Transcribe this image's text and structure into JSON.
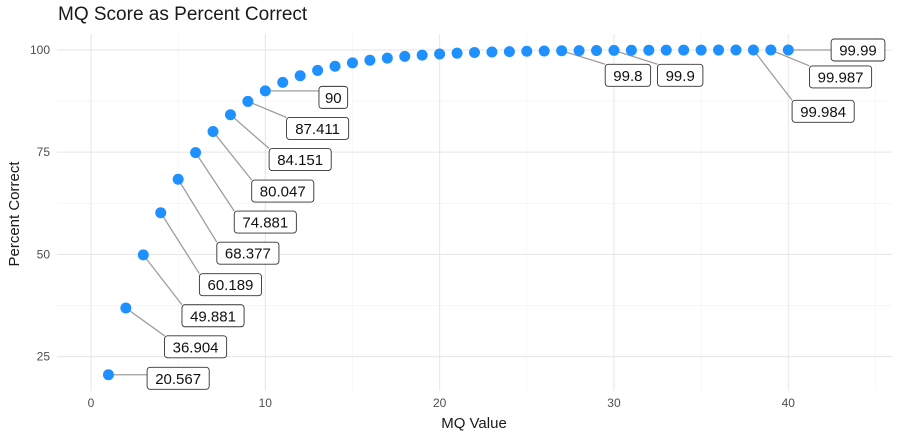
{
  "chart_data": {
    "type": "scatter",
    "title": "MQ Score as Percent Correct",
    "xlabel": "MQ Value",
    "ylabel": "Percent Correct",
    "xlim": [
      -1.95,
      45.95
    ],
    "ylim": [
      16.6,
      103.9
    ],
    "x_ticks": [
      0,
      10,
      20,
      30,
      40
    ],
    "y_ticks": [
      25,
      50,
      75,
      100
    ],
    "grid": true,
    "legend": "none",
    "point_color": "#1e90ff",
    "series": [
      {
        "x": [
          1,
          2,
          3,
          4,
          5,
          6,
          7,
          8,
          9,
          10,
          11,
          12,
          13,
          14,
          15,
          16,
          17,
          18,
          19,
          20,
          21,
          22,
          23,
          24,
          25,
          26,
          27,
          28,
          29,
          30,
          31,
          32,
          33,
          34,
          35,
          36,
          37,
          38,
          39,
          40
        ],
        "values": [
          20.567,
          36.904,
          49.881,
          60.189,
          68.377,
          74.881,
          80.047,
          84.151,
          87.411,
          90,
          92.06,
          93.69,
          94.99,
          96.02,
          96.84,
          97.49,
          98.0,
          98.42,
          98.74,
          99.0,
          99.21,
          99.37,
          99.5,
          99.6,
          99.68,
          99.75,
          99.8,
          99.84,
          99.87,
          99.9,
          99.92,
          99.94,
          99.95,
          99.96,
          99.97,
          99.975,
          99.98,
          99.984,
          99.987,
          99.99
        ]
      }
    ],
    "labeled_points": [
      {
        "x": 1,
        "y": 20.567,
        "label": "20.567",
        "lx": 5.0,
        "ly": 19.7
      },
      {
        "x": 2,
        "y": 36.904,
        "label": "36.904",
        "lx": 6.0,
        "ly": 27.4
      },
      {
        "x": 3,
        "y": 49.881,
        "label": "49.881",
        "lx": 7.0,
        "ly": 35.0
      },
      {
        "x": 4,
        "y": 60.189,
        "label": "60.189",
        "lx": 8.0,
        "ly": 42.6
      },
      {
        "x": 5,
        "y": 68.377,
        "label": "68.377",
        "lx": 9.0,
        "ly": 50.3
      },
      {
        "x": 6,
        "y": 74.881,
        "label": "74.881",
        "lx": 10.0,
        "ly": 57.9
      },
      {
        "x": 7,
        "y": 80.047,
        "label": "80.047",
        "lx": 11.0,
        "ly": 65.5
      },
      {
        "x": 8,
        "y": 84.151,
        "label": "84.151",
        "lx": 12.0,
        "ly": 73.2
      },
      {
        "x": 9,
        "y": 87.411,
        "label": "87.411",
        "lx": 13.0,
        "ly": 80.8
      },
      {
        "x": 10,
        "y": 90,
        "label": "90",
        "lx": 13.9,
        "ly": 88.4
      },
      {
        "x": 27,
        "y": 99.8,
        "label": "99.8",
        "lx": 30.8,
        "ly": 93.8
      },
      {
        "x": 30,
        "y": 99.9,
        "label": "99.9",
        "lx": 33.8,
        "ly": 93.8
      },
      {
        "x": 38,
        "y": 99.984,
        "label": "99.984",
        "lx": 42.0,
        "ly": 85.0
      },
      {
        "x": 39,
        "y": 99.987,
        "label": "99.987",
        "lx": 43.0,
        "ly": 93.4
      },
      {
        "x": 40,
        "y": 99.99,
        "label": "99.99",
        "lx": 44.0,
        "ly": 99.99
      }
    ]
  }
}
